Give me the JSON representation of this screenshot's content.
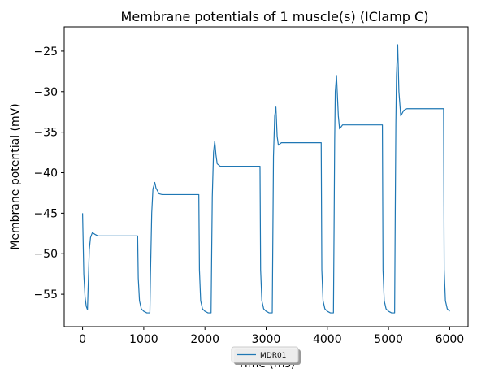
{
  "chart_data": {
    "type": "line",
    "title": "Membrane potentials of 1 muscle(s) (IClamp C)",
    "xlabel": "Time (ms)",
    "ylabel": "Membrane potential (mV)",
    "xlim": [
      -300,
      6300
    ],
    "ylim": [
      -59,
      -22
    ],
    "xticks": [
      0,
      1000,
      2000,
      3000,
      4000,
      5000,
      6000
    ],
    "yticks": [
      -25,
      -30,
      -35,
      -40,
      -45,
      -50,
      -55
    ],
    "grid": false,
    "legend_position": "bottom-center",
    "series": [
      {
        "name": "MDR01",
        "color": "#1f77b4",
        "x": [
          0,
          20,
          40,
          60,
          80,
          100,
          110,
          130,
          160,
          200,
          250,
          300,
          400,
          600,
          900,
          910,
          930,
          960,
          1000,
          1050,
          1100,
          1110,
          1130,
          1150,
          1180,
          1200,
          1250,
          1300,
          1500,
          1900,
          1910,
          1930,
          1960,
          2000,
          2050,
          2100,
          2110,
          2120,
          2140,
          2160,
          2180,
          2200,
          2250,
          2300,
          2500,
          2900,
          2910,
          2930,
          2960,
          3000,
          3050,
          3100,
          3110,
          3120,
          3140,
          3160,
          3180,
          3200,
          3250,
          3300,
          3500,
          3900,
          3910,
          3930,
          3960,
          4000,
          4050,
          4100,
          4110,
          4120,
          4130,
          4150,
          4180,
          4200,
          4250,
          4300,
          4500,
          4900,
          4910,
          4930,
          4960,
          5000,
          5050,
          5100,
          5110,
          5120,
          5130,
          5150,
          5170,
          5200,
          5250,
          5300,
          5500,
          5900,
          5910,
          5930,
          5960,
          6000
        ],
        "y": [
          -45.0,
          -52.5,
          -55.3,
          -56.5,
          -56.9,
          -52.0,
          -49.5,
          -48.0,
          -47.4,
          -47.6,
          -47.8,
          -47.8,
          -47.8,
          -47.8,
          -47.8,
          -53.0,
          -55.8,
          -56.8,
          -57.1,
          -57.3,
          -57.3,
          -52.5,
          -45.0,
          -42.0,
          -41.2,
          -41.9,
          -42.6,
          -42.7,
          -42.7,
          -42.7,
          -52.0,
          -55.8,
          -56.8,
          -57.1,
          -57.3,
          -57.3,
          -50.0,
          -43.0,
          -37.5,
          -36.1,
          -37.8,
          -38.9,
          -39.2,
          -39.2,
          -39.2,
          -39.2,
          -52.0,
          -55.8,
          -56.8,
          -57.1,
          -57.3,
          -57.3,
          -48.0,
          -38.0,
          -33.0,
          -31.9,
          -35.5,
          -36.6,
          -36.3,
          -36.3,
          -36.3,
          -36.3,
          -52.0,
          -55.8,
          -56.8,
          -57.1,
          -57.3,
          -57.3,
          -47.0,
          -36.0,
          -30.0,
          -28.0,
          -33.0,
          -34.6,
          -34.1,
          -34.1,
          -34.1,
          -34.1,
          -52.0,
          -55.8,
          -56.8,
          -57.1,
          -57.3,
          -57.3,
          -45.0,
          -34.0,
          -28.0,
          -24.2,
          -30.0,
          -33.0,
          -32.3,
          -32.1,
          -32.1,
          -32.1,
          -52.0,
          -55.8,
          -56.8,
          -57.1
        ]
      }
    ]
  }
}
